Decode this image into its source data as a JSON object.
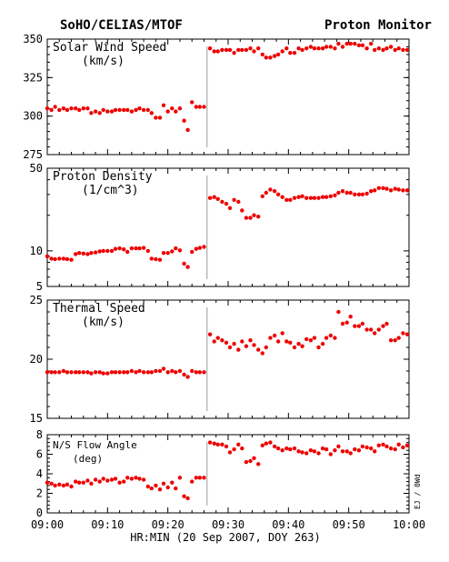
{
  "header": {
    "left_title": "SoHO/CELIAS/MTOF",
    "right_title": "Proton Monitor"
  },
  "xaxis": {
    "label": "HR:MIN (20 Sep 2007, DOY 263)",
    "ticks": [
      "09:00",
      "09:10",
      "09:20",
      "09:30",
      "09:40",
      "09:50",
      "10:00"
    ]
  },
  "side_note": "EJ / 0Wd",
  "colors": {
    "points": "#ee0000",
    "axes": "#000000",
    "gap_line": "#999999"
  },
  "chart_data": [
    {
      "type": "scatter",
      "label_lines": [
        "Solar Wind Speed",
        "(km/s)"
      ],
      "ylim": [
        275,
        350
      ],
      "yticks": [
        "275",
        "300",
        "325",
        "350"
      ],
      "x_minutes": [
        0.0,
        0.7,
        1.3,
        2.0,
        2.7,
        3.3,
        4.0,
        4.7,
        5.3,
        6.0,
        6.7,
        7.3,
        8.0,
        8.7,
        9.3,
        10.0,
        10.7,
        11.3,
        12.0,
        12.7,
        13.3,
        14.0,
        14.7,
        15.3,
        16.0,
        16.7,
        17.3,
        18.0,
        18.7,
        19.3,
        20.0,
        20.7,
        21.3,
        22.0,
        22.7,
        23.3,
        24.0,
        24.7,
        25.3,
        26.0,
        27.0,
        27.7,
        28.3,
        29.0,
        29.7,
        30.3,
        31.0,
        31.7,
        32.3,
        33.0,
        33.7,
        34.3,
        35.0,
        35.7,
        36.3,
        37.0,
        37.7,
        38.3,
        39.0,
        39.7,
        40.3,
        41.0,
        41.7,
        42.3,
        43.0,
        43.7,
        44.3,
        45.0,
        45.7,
        46.3,
        47.0,
        47.7,
        48.3,
        49.0,
        49.7,
        50.3,
        51.0,
        51.7,
        52.3,
        53.0,
        53.7,
        54.3,
        55.0,
        55.7,
        56.3,
        57.0,
        57.7,
        58.3,
        59.0,
        59.7
      ],
      "values": [
        305,
        304,
        306,
        304,
        305,
        304,
        305,
        305,
        304,
        305,
        305,
        302,
        303,
        302,
        304,
        303,
        303,
        304,
        304,
        304,
        304,
        303,
        304,
        305,
        304,
        304,
        302,
        299,
        299,
        307,
        303,
        305,
        303,
        305,
        297,
        291,
        309,
        306,
        306,
        306,
        344,
        342,
        342,
        343,
        343,
        343,
        341,
        343,
        343,
        343,
        344,
        342,
        344,
        340,
        338,
        338,
        339,
        340,
        342,
        344,
        341,
        341,
        344,
        343,
        344,
        345,
        344,
        344,
        344,
        345,
        345,
        344,
        347,
        345,
        347,
        347,
        347,
        346,
        346,
        344,
        347,
        343,
        344,
        343,
        344,
        345,
        343,
        344,
        343,
        343
      ]
    },
    {
      "type": "scatter",
      "label_lines": [
        "Proton Density",
        "(1/cm^3)"
      ],
      "ylim": [
        5,
        50
      ],
      "log_scale": true,
      "yticks": [
        "5",
        "10",
        "50"
      ],
      "x_minutes": [
        0.0,
        0.7,
        1.3,
        2.0,
        2.7,
        3.3,
        4.0,
        4.7,
        5.3,
        6.0,
        6.7,
        7.3,
        8.0,
        8.7,
        9.3,
        10.0,
        10.7,
        11.3,
        12.0,
        12.7,
        13.3,
        14.0,
        14.7,
        15.3,
        16.0,
        16.7,
        17.3,
        18.0,
        18.7,
        19.3,
        20.0,
        20.7,
        21.3,
        22.0,
        22.7,
        23.3,
        24.0,
        24.7,
        25.3,
        26.0,
        27.0,
        27.7,
        28.3,
        29.0,
        29.7,
        30.3,
        31.0,
        31.7,
        32.3,
        33.0,
        33.7,
        34.3,
        35.0,
        35.7,
        36.3,
        37.0,
        37.7,
        38.3,
        39.0,
        39.7,
        40.3,
        41.0,
        41.7,
        42.3,
        43.0,
        43.7,
        44.3,
        45.0,
        45.7,
        46.3,
        47.0,
        47.7,
        48.3,
        49.0,
        49.7,
        50.3,
        51.0,
        51.7,
        52.3,
        53.0,
        53.7,
        54.3,
        55.0,
        55.7,
        56.3,
        57.0,
        57.7,
        58.3,
        59.0,
        59.7
      ],
      "values": [
        9.0,
        8.6,
        8.5,
        8.6,
        8.6,
        8.5,
        8.4,
        9.4,
        9.6,
        9.5,
        9.4,
        9.6,
        9.7,
        9.9,
        10.0,
        10.0,
        10.0,
        10.4,
        10.5,
        10.3,
        9.8,
        10.5,
        10.5,
        10.5,
        10.6,
        10.0,
        8.6,
        8.5,
        8.4,
        9.6,
        9.6,
        9.9,
        10.5,
        10.1,
        7.8,
        7.3,
        9.8,
        10.4,
        10.6,
        10.8,
        28.0,
        28.5,
        27.5,
        26.0,
        25.0,
        23.0,
        27.0,
        26.0,
        22.0,
        19.0,
        19.0,
        20.0,
        19.5,
        29.0,
        31.0,
        33.0,
        32.0,
        30.0,
        28.5,
        27.0,
        27.0,
        28.0,
        28.5,
        29.0,
        28.0,
        28.0,
        28.0,
        28.0,
        28.5,
        28.5,
        29.0,
        29.5,
        31.0,
        32.0,
        31.0,
        31.0,
        30.0,
        30.0,
        30.0,
        30.5,
        32.0,
        32.5,
        34.0,
        34.0,
        33.5,
        32.5,
        33.5,
        33.0,
        32.5,
        32.5
      ]
    },
    {
      "type": "scatter",
      "label_lines": [
        "Thermal Speed",
        "(km/s)"
      ],
      "ylim": [
        15,
        25
      ],
      "yticks": [
        "15",
        "20",
        "25"
      ],
      "x_minutes": [
        0.0,
        0.7,
        1.3,
        2.0,
        2.7,
        3.3,
        4.0,
        4.7,
        5.3,
        6.0,
        6.7,
        7.3,
        8.0,
        8.7,
        9.3,
        10.0,
        10.7,
        11.3,
        12.0,
        12.7,
        13.3,
        14.0,
        14.7,
        15.3,
        16.0,
        16.7,
        17.3,
        18.0,
        18.7,
        19.3,
        20.0,
        20.7,
        21.3,
        22.0,
        22.7,
        23.3,
        24.0,
        24.7,
        25.3,
        26.0,
        27.0,
        27.7,
        28.3,
        29.0,
        29.7,
        30.3,
        31.0,
        31.7,
        32.3,
        33.0,
        33.7,
        34.3,
        35.0,
        35.7,
        36.3,
        37.0,
        37.7,
        38.3,
        39.0,
        39.7,
        40.3,
        41.0,
        41.7,
        42.3,
        43.0,
        43.7,
        44.3,
        45.0,
        45.7,
        46.3,
        47.0,
        47.7,
        48.3,
        49.0,
        49.7,
        50.3,
        51.0,
        51.7,
        52.3,
        53.0,
        53.7,
        54.3,
        55.0,
        55.7,
        56.3,
        57.0,
        57.7,
        58.3,
        59.0,
        59.7
      ],
      "values": [
        18.9,
        18.9,
        18.9,
        18.9,
        19.0,
        18.9,
        18.9,
        18.9,
        18.9,
        18.9,
        18.9,
        18.8,
        18.9,
        18.9,
        18.8,
        18.8,
        18.9,
        18.9,
        18.9,
        18.9,
        18.9,
        19.0,
        18.9,
        19.0,
        18.9,
        18.9,
        18.9,
        19.0,
        19.0,
        19.2,
        18.9,
        19.0,
        18.9,
        19.0,
        18.7,
        18.5,
        19.0,
        18.9,
        18.9,
        18.9,
        22.1,
        21.5,
        21.8,
        21.6,
        21.4,
        21.0,
        21.3,
        20.8,
        21.5,
        21.1,
        21.6,
        21.2,
        20.8,
        20.5,
        21.0,
        21.8,
        22.0,
        21.5,
        22.2,
        21.5,
        21.4,
        21.0,
        21.3,
        21.1,
        21.7,
        21.6,
        21.8,
        21.0,
        21.3,
        21.8,
        22.0,
        21.8,
        24.0,
        23.0,
        23.1,
        23.6,
        22.8,
        22.8,
        23.0,
        22.5,
        22.5,
        22.2,
        22.5,
        22.8,
        23.0,
        21.6,
        21.6,
        21.8,
        22.2,
        22.1
      ]
    },
    {
      "type": "scatter",
      "label_lines": [
        "N/S Flow Angle",
        "(deg)"
      ],
      "ylim": [
        0,
        8
      ],
      "yticks": [
        "0",
        "2",
        "4",
        "6",
        "8"
      ],
      "x_minutes": [
        0.0,
        0.7,
        1.3,
        2.0,
        2.7,
        3.3,
        4.0,
        4.7,
        5.3,
        6.0,
        6.7,
        7.3,
        8.0,
        8.7,
        9.3,
        10.0,
        10.7,
        11.3,
        12.0,
        12.7,
        13.3,
        14.0,
        14.7,
        15.3,
        16.0,
        16.7,
        17.3,
        18.0,
        18.7,
        19.3,
        20.0,
        20.7,
        21.3,
        22.0,
        22.7,
        23.3,
        24.0,
        24.7,
        25.3,
        26.0,
        27.0,
        27.7,
        28.3,
        29.0,
        29.7,
        30.3,
        31.0,
        31.7,
        32.3,
        33.0,
        33.7,
        34.3,
        35.0,
        35.7,
        36.3,
        37.0,
        37.7,
        38.3,
        39.0,
        39.7,
        40.3,
        41.0,
        41.7,
        42.3,
        43.0,
        43.7,
        44.3,
        45.0,
        45.7,
        46.3,
        47.0,
        47.7,
        48.3,
        49.0,
        49.7,
        50.3,
        51.0,
        51.7,
        52.3,
        53.0,
        53.7,
        54.3,
        55.0,
        55.7,
        56.3,
        57.0,
        57.7,
        58.3,
        59.0,
        59.7
      ],
      "values": [
        3.1,
        3.0,
        2.8,
        2.9,
        2.8,
        2.9,
        2.7,
        3.2,
        3.1,
        3.1,
        3.3,
        3.0,
        3.4,
        3.2,
        3.5,
        3.3,
        3.4,
        3.5,
        3.1,
        3.2,
        3.6,
        3.5,
        3.6,
        3.5,
        3.4,
        2.7,
        2.5,
        2.8,
        2.4,
        3.0,
        2.6,
        3.1,
        2.5,
        3.6,
        1.7,
        1.5,
        3.2,
        3.6,
        3.6,
        3.6,
        7.2,
        7.1,
        7.0,
        7.0,
        6.8,
        6.2,
        6.5,
        7.0,
        6.6,
        5.2,
        5.3,
        5.6,
        5.0,
        6.9,
        7.1,
        7.2,
        6.8,
        6.6,
        6.4,
        6.6,
        6.5,
        6.6,
        6.3,
        6.2,
        6.1,
        6.4,
        6.3,
        6.1,
        6.6,
        6.5,
        6.0,
        6.4,
        6.8,
        6.3,
        6.3,
        6.1,
        6.5,
        6.4,
        6.8,
        6.7,
        6.6,
        6.3,
        6.9,
        7.0,
        6.8,
        6.6,
        6.5,
        7.0,
        6.7,
        6.9
      ]
    }
  ]
}
